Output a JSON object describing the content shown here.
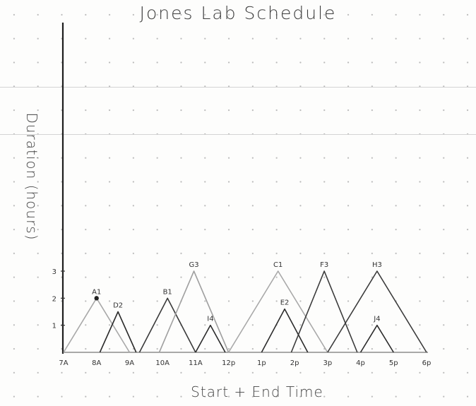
{
  "page": {
    "title": "Jones Lab Schedule"
  },
  "chart_data": {
    "type": "line",
    "title": "Jones Lab Schedule",
    "xlabel": "Start + End Time",
    "ylabel": "Duration (hours)",
    "x_tick_labels": [
      "7A",
      "8A",
      "9A",
      "10A",
      "11A",
      "12p",
      "1p",
      "2p",
      "3p",
      "4p",
      "5p",
      "6p"
    ],
    "y_tick_labels": [
      "1",
      "2",
      "3"
    ],
    "xlim": [
      7,
      18
    ],
    "ylim": [
      0,
      3
    ],
    "grid": false,
    "series": [
      {
        "name": "A1",
        "start": 7,
        "end": 9,
        "peak_hours": 2,
        "color": "#a8a8a8",
        "marker": true
      },
      {
        "name": "D2",
        "start": 8.1,
        "end": 9.2,
        "peak_hours": 1.5,
        "color": "#2b2b2b"
      },
      {
        "name": "B1",
        "start": 9.3,
        "end": 11,
        "peak_hours": 2,
        "color": "#3a3a3a"
      },
      {
        "name": "G3",
        "start": 9.9,
        "end": 12,
        "peak_hours": 3,
        "color": "#a0a0a0"
      },
      {
        "name": "I4",
        "start": 11,
        "end": 11.9,
        "peak_hours": 1,
        "color": "#2b2b2b"
      },
      {
        "name": "C1",
        "start": 12,
        "end": 15,
        "peak_hours": 3,
        "color": "#a8a8a8"
      },
      {
        "name": "E2",
        "start": 13,
        "end": 14.4,
        "peak_hours": 1.6,
        "color": "#2b2b2b"
      },
      {
        "name": "F3",
        "start": 13.9,
        "end": 15.9,
        "peak_hours": 3,
        "color": "#3a3a3a"
      },
      {
        "name": "H3",
        "start": 15,
        "end": 18,
        "peak_hours": 3,
        "color": "#3a3a3a"
      },
      {
        "name": "J4",
        "start": 16,
        "end": 17,
        "peak_hours": 1,
        "color": "#2b2b2b"
      }
    ]
  }
}
